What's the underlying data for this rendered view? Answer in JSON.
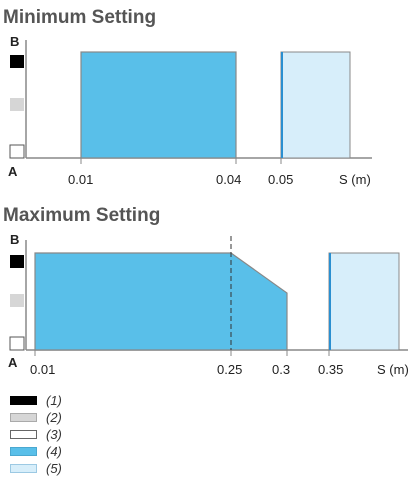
{
  "colors": {
    "c1": "#000000",
    "c2": "#d6d6d6",
    "c3": "#ffffff",
    "c4": "#59bfe9",
    "c5": "#d7eefa",
    "axis": "#888888"
  },
  "panels": [
    {
      "title": "Minimum Setting",
      "label_b": "B",
      "label_a": "A",
      "ticks": [
        "0.01",
        "0.04",
        "0.05",
        "S (m)"
      ]
    },
    {
      "title": "Maximum Setting",
      "label_b": "B",
      "label_a": "A",
      "ticks": [
        "0.01",
        "0.25",
        "0.3",
        "0.35",
        "S (m)"
      ]
    }
  ],
  "legend": [
    {
      "label": "(1)",
      "color": "#000000"
    },
    {
      "label": "(2)",
      "color": "#d6d6d6"
    },
    {
      "label": "(3)",
      "color": "#ffffff"
    },
    {
      "label": "(4)",
      "color": "#59bfe9"
    },
    {
      "label": "(5)",
      "color": "#d7eefa"
    }
  ]
}
